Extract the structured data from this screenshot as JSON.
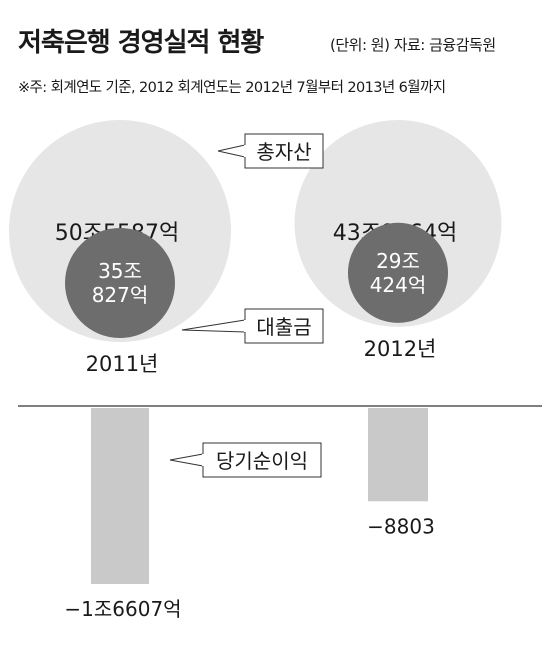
{
  "header": {
    "title": "저축은행 경영실적 현황",
    "unit_source": "(단위: 원)  자료: 금융감독원",
    "note": "※주: 회계연도 기준, 2012 회계연도는 2012년 7월부터 2013년 6월까지"
  },
  "chart_data": {
    "type": "bubble-bar",
    "categories": [
      "2011년",
      "2012년"
    ],
    "series": [
      {
        "name": "총자산",
        "values": [
          505587,
          439064
        ],
        "labels": [
          "50조5587억",
          "43조9064억"
        ],
        "unit": "억원",
        "color": "#e6e6e6"
      },
      {
        "name": "대출금",
        "values": [
          350827,
          290424
        ],
        "labels": [
          "35조\n827억",
          "29조\n424억"
        ],
        "unit": "억원",
        "color": "#6d6d6d"
      },
      {
        "name": "당기순이익",
        "values": [
          -16607,
          -8803
        ],
        "labels": [
          "−1조6607억",
          "−8803"
        ],
        "unit": "억원",
        "color": "#c9c9c9"
      }
    ]
  }
}
